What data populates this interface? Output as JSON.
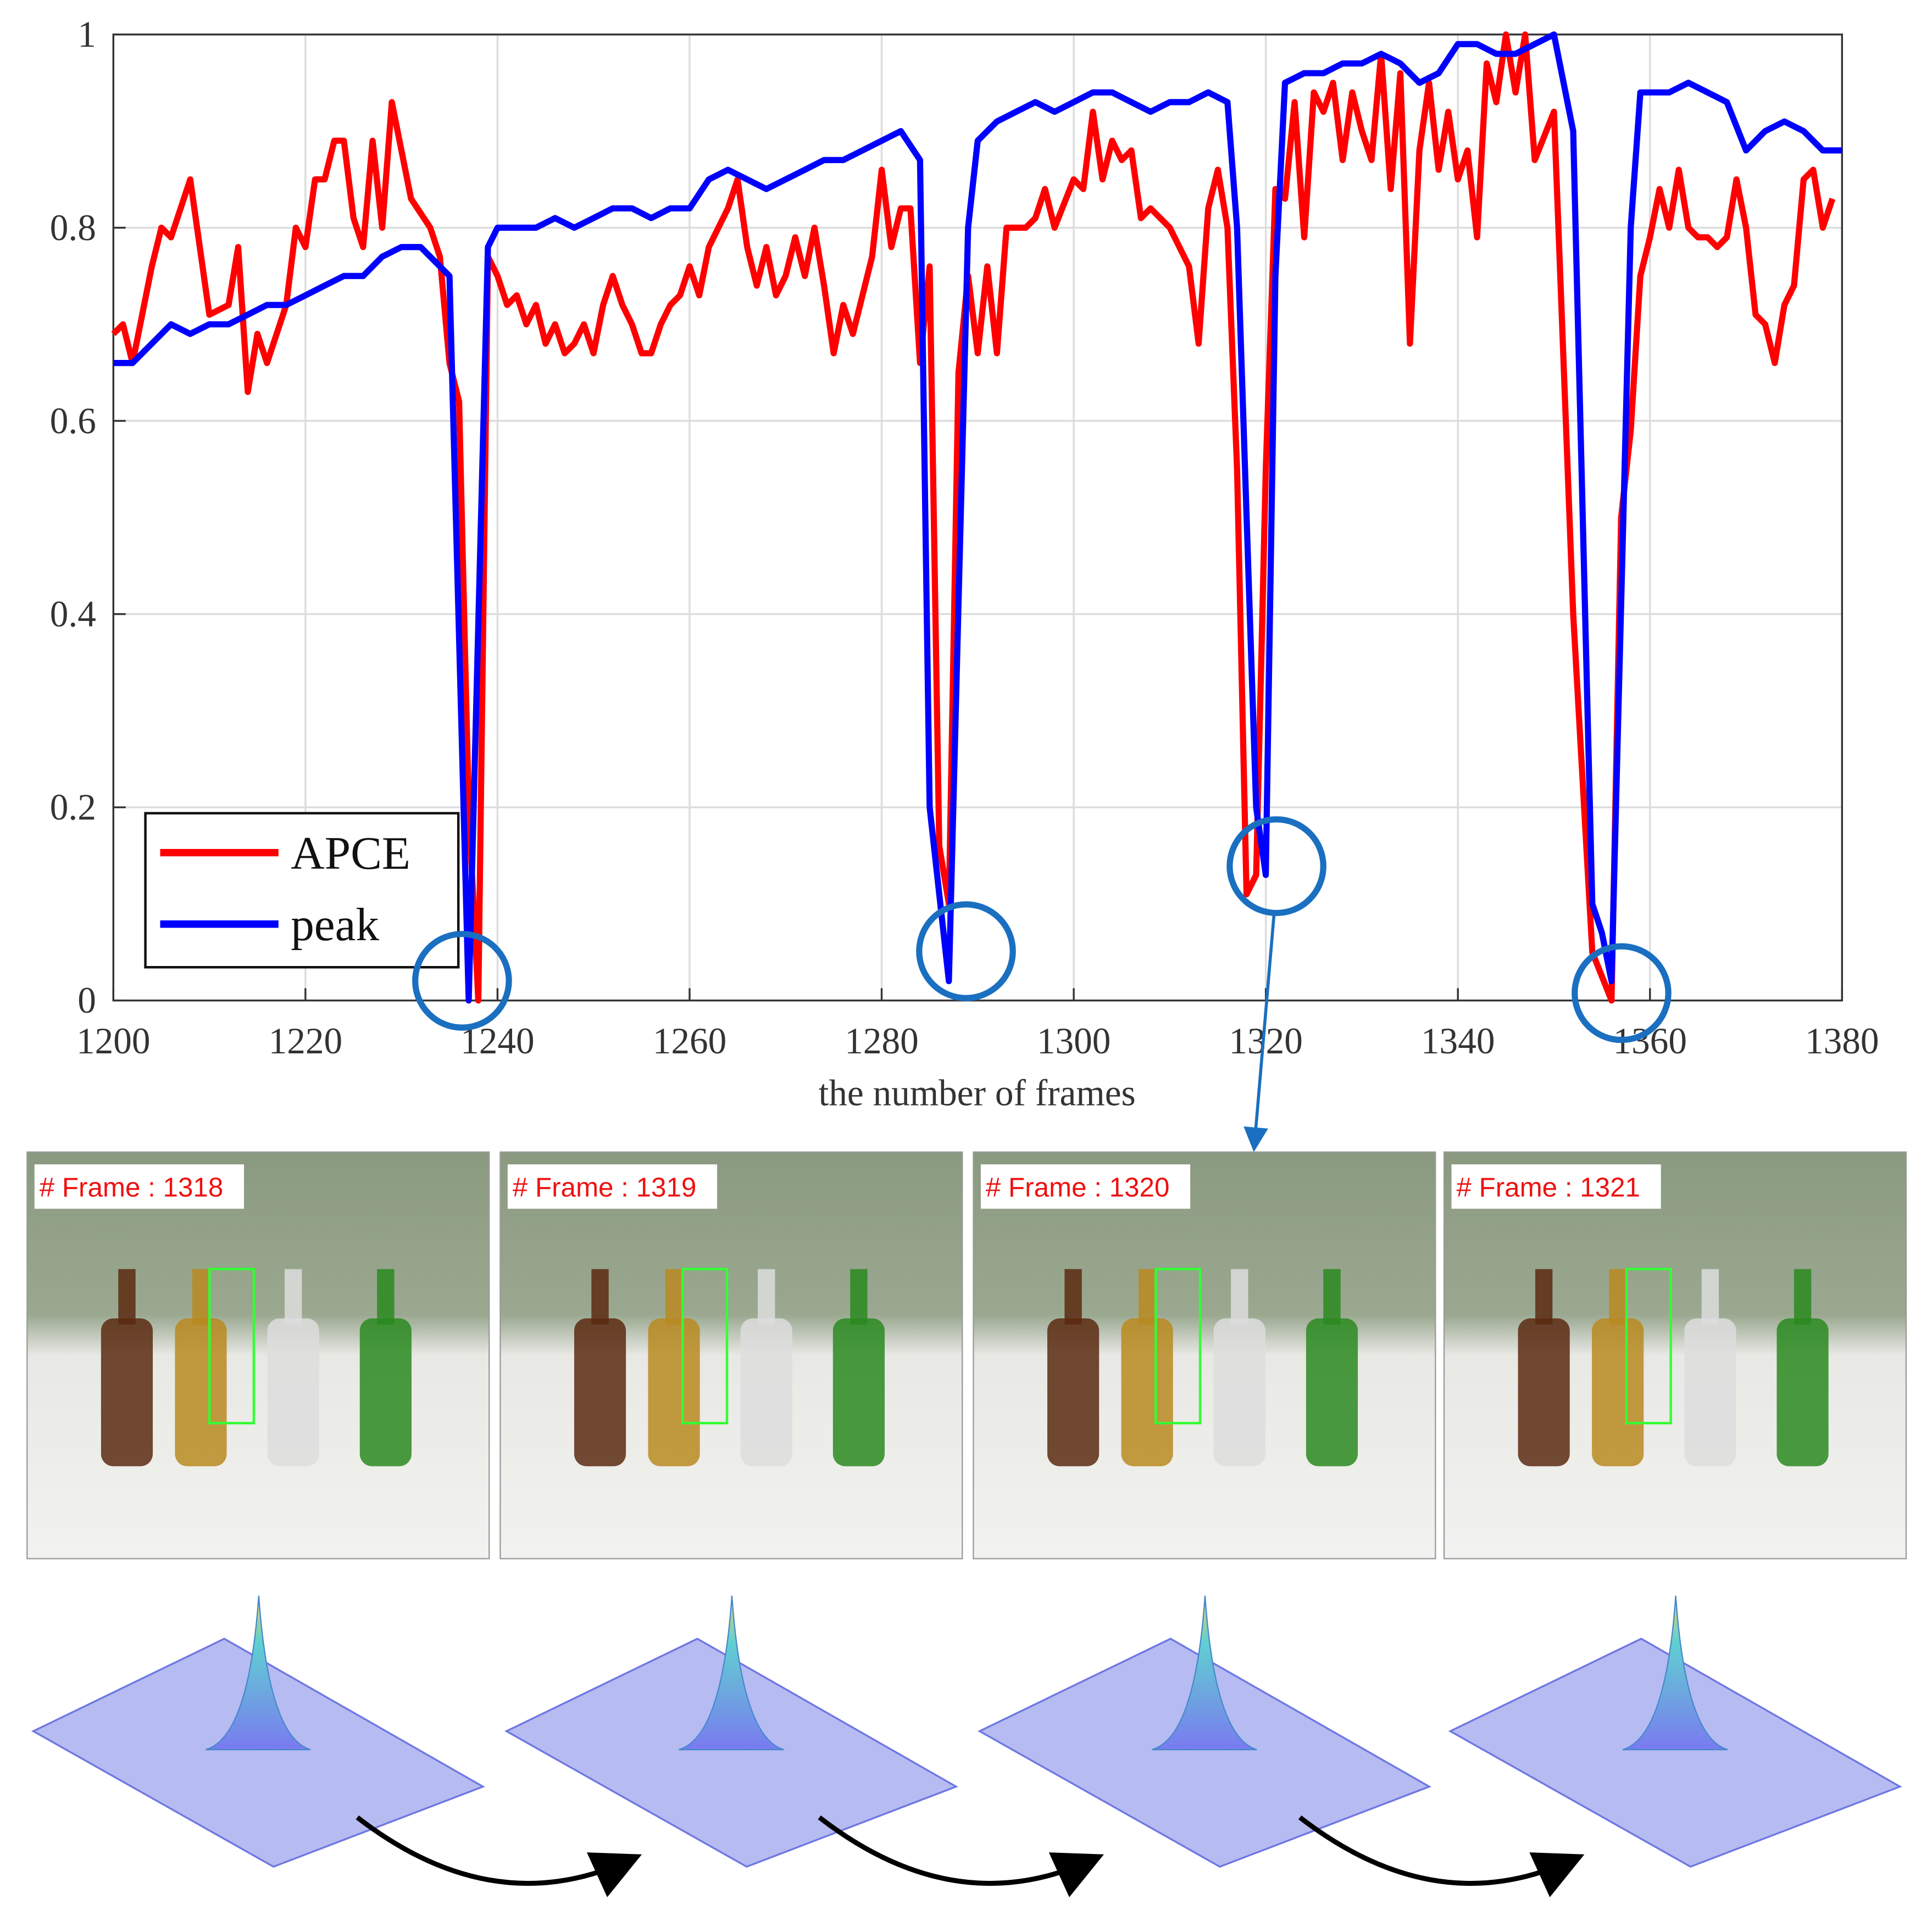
{
  "chart_data": {
    "type": "line",
    "x_label": "the number of frames",
    "xlim": [
      1200,
      1380
    ],
    "ylim": [
      0,
      1
    ],
    "xticks": [
      1200,
      1220,
      1240,
      1260,
      1280,
      1300,
      1320,
      1340,
      1360,
      1380
    ],
    "yticks": [
      0,
      0.2,
      0.4,
      0.6,
      0.8,
      1
    ],
    "grid": true,
    "legend": "lower left",
    "series": [
      {
        "name": "APCE",
        "color": "#ff0000",
        "x": [
          1200,
          1201,
          1202,
          1204,
          1205,
          1206,
          1208,
          1210,
          1212,
          1213,
          1214,
          1215,
          1216,
          1218,
          1219,
          1220,
          1221,
          1222,
          1223,
          1224,
          1225,
          1226,
          1227,
          1228,
          1229,
          1231,
          1233,
          1234,
          1235,
          1236,
          1237,
          1238,
          1239,
          1240,
          1241,
          1242,
          1243,
          1244,
          1245,
          1246,
          1247,
          1248,
          1249,
          1250,
          1251,
          1252,
          1253,
          1254,
          1255,
          1256,
          1257,
          1258,
          1259,
          1260,
          1261,
          1262,
          1264,
          1265,
          1266,
          1267,
          1268,
          1269,
          1270,
          1271,
          1272,
          1273,
          1274,
          1275,
          1276,
          1277,
          1278,
          1279,
          1280,
          1281,
          1282,
          1283,
          1284,
          1285,
          1286,
          1287,
          1288,
          1289,
          1290,
          1291,
          1292,
          1293,
          1294,
          1295,
          1296,
          1297,
          1298,
          1300,
          1301,
          1302,
          1303,
          1304,
          1305,
          1306,
          1307,
          1308,
          1310,
          1312,
          1313,
          1314,
          1315,
          1316,
          1317,
          1318,
          1319,
          1320,
          1321,
          1322,
          1323,
          1324,
          1325,
          1326,
          1327,
          1328,
          1329,
          1330,
          1331,
          1332,
          1333,
          1334,
          1335,
          1336,
          1337,
          1338,
          1339,
          1340,
          1341,
          1342,
          1343,
          1344,
          1345,
          1346,
          1347,
          1348,
          1350,
          1352,
          1354,
          1356,
          1357,
          1358,
          1359,
          1360,
          1361,
          1362,
          1363,
          1364,
          1365,
          1366,
          1367,
          1368,
          1369,
          1370,
          1371,
          1372,
          1373,
          1374,
          1375,
          1376,
          1377,
          1378,
          1379
        ],
        "values": [
          0.69,
          0.7,
          0.66,
          0.76,
          0.8,
          0.79,
          0.85,
          0.71,
          0.72,
          0.78,
          0.63,
          0.69,
          0.66,
          0.72,
          0.8,
          0.78,
          0.85,
          0.85,
          0.89,
          0.89,
          0.81,
          0.78,
          0.89,
          0.8,
          0.93,
          0.83,
          0.8,
          0.77,
          0.66,
          0.62,
          0.2,
          0.0,
          0.77,
          0.75,
          0.72,
          0.73,
          0.7,
          0.72,
          0.68,
          0.7,
          0.67,
          0.68,
          0.7,
          0.67,
          0.72,
          0.75,
          0.72,
          0.7,
          0.67,
          0.67,
          0.7,
          0.72,
          0.73,
          0.76,
          0.73,
          0.78,
          0.82,
          0.85,
          0.78,
          0.74,
          0.78,
          0.73,
          0.75,
          0.79,
          0.75,
          0.8,
          0.74,
          0.67,
          0.72,
          0.69,
          0.73,
          0.77,
          0.86,
          0.78,
          0.82,
          0.82,
          0.66,
          0.76,
          0.16,
          0.1,
          0.65,
          0.75,
          0.67,
          0.76,
          0.67,
          0.8,
          0.8,
          0.8,
          0.81,
          0.84,
          0.8,
          0.85,
          0.84,
          0.92,
          0.85,
          0.89,
          0.87,
          0.88,
          0.81,
          0.82,
          0.8,
          0.76,
          0.68,
          0.82,
          0.86,
          0.8,
          0.55,
          0.11,
          0.13,
          0.55,
          0.84,
          0.83,
          0.93,
          0.79,
          0.94,
          0.92,
          0.95,
          0.87,
          0.94,
          0.9,
          0.87,
          0.98,
          0.84,
          0.96,
          0.68,
          0.88,
          0.95,
          0.86,
          0.92,
          0.85,
          0.88,
          0.79,
          0.97,
          0.93,
          1.0,
          0.94,
          1.0,
          0.87,
          0.92,
          0.4,
          0.05,
          0.0,
          0.5,
          0.59,
          0.75,
          0.79,
          0.84,
          0.8,
          0.86,
          0.8,
          0.79,
          0.79,
          0.78,
          0.79,
          0.85,
          0.8,
          0.71,
          0.7,
          0.66,
          0.72,
          0.74,
          0.85,
          0.86,
          0.8,
          0.83
        ]
      },
      {
        "name": "peak",
        "color": "#0000ff",
        "x": [
          1200,
          1202,
          1204,
          1206,
          1208,
          1210,
          1212,
          1214,
          1216,
          1218,
          1220,
          1222,
          1224,
          1226,
          1228,
          1230,
          1232,
          1234,
          1235,
          1237,
          1239,
          1240,
          1242,
          1244,
          1246,
          1248,
          1250,
          1252,
          1254,
          1256,
          1258,
          1260,
          1262,
          1264,
          1266,
          1268,
          1270,
          1272,
          1274,
          1276,
          1278,
          1280,
          1282,
          1284,
          1285,
          1287,
          1289,
          1290,
          1292,
          1294,
          1296,
          1298,
          1300,
          1302,
          1304,
          1306,
          1308,
          1310,
          1312,
          1314,
          1316,
          1317,
          1319,
          1320,
          1321,
          1322,
          1324,
          1326,
          1328,
          1330,
          1332,
          1334,
          1336,
          1338,
          1340,
          1342,
          1344,
          1346,
          1348,
          1350,
          1352,
          1354,
          1355,
          1356,
          1358,
          1359,
          1362,
          1364,
          1366,
          1368,
          1370,
          1372,
          1374,
          1376,
          1378,
          1380
        ],
        "values": [
          0.66,
          0.66,
          0.68,
          0.7,
          0.69,
          0.7,
          0.7,
          0.71,
          0.72,
          0.72,
          0.73,
          0.74,
          0.75,
          0.75,
          0.77,
          0.78,
          0.78,
          0.76,
          0.75,
          0.0,
          0.78,
          0.8,
          0.8,
          0.8,
          0.81,
          0.8,
          0.81,
          0.82,
          0.82,
          0.81,
          0.82,
          0.82,
          0.85,
          0.86,
          0.85,
          0.84,
          0.85,
          0.86,
          0.87,
          0.87,
          0.88,
          0.89,
          0.9,
          0.87,
          0.2,
          0.02,
          0.8,
          0.89,
          0.91,
          0.92,
          0.93,
          0.92,
          0.93,
          0.94,
          0.94,
          0.93,
          0.92,
          0.93,
          0.93,
          0.94,
          0.93,
          0.8,
          0.2,
          0.13,
          0.75,
          0.95,
          0.96,
          0.96,
          0.97,
          0.97,
          0.98,
          0.97,
          0.95,
          0.96,
          0.99,
          0.99,
          0.98,
          0.98,
          0.99,
          1.0,
          0.9,
          0.1,
          0.07,
          0.02,
          0.8,
          0.94,
          0.94,
          0.95,
          0.94,
          0.93,
          0.88,
          0.9,
          0.91,
          0.9,
          0.88,
          0.88
        ]
      }
    ]
  },
  "frames": [
    "# Frame : 1318",
    "# Frame : 1319",
    "# Frame : 1320",
    "# Frame : 1321"
  ]
}
